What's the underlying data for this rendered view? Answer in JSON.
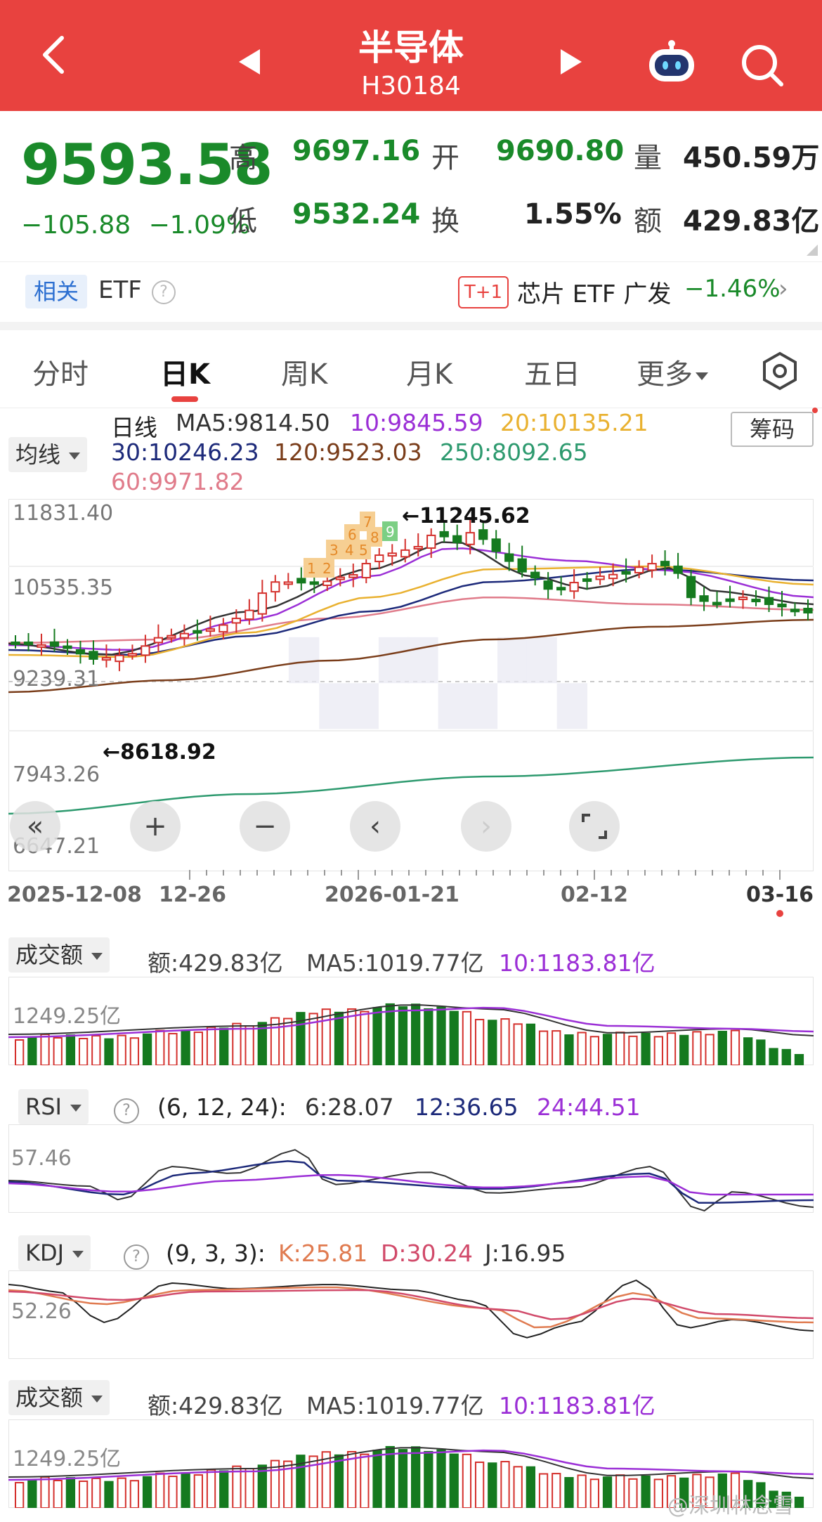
{
  "header": {
    "title": "半导体",
    "code": "H30184"
  },
  "quote": {
    "price": "9593.58",
    "change": "−105.88",
    "change_pct": "−1.09%",
    "high_label": "高",
    "high": "9697.16",
    "open_label": "开",
    "open": "9690.80",
    "volume_label": "量",
    "volume": "450.59万",
    "low_label": "低",
    "low": "9532.24",
    "turnover_label": "换",
    "turnover": "1.55%",
    "amount_label": "额",
    "amount": "429.83亿"
  },
  "etf": {
    "tag": "相关",
    "label": "ETF",
    "help": "?",
    "t1": "T+1",
    "name": "芯片 ETF 广发",
    "change": "−1.46%"
  },
  "tabs": [
    "分时",
    "日K",
    "周K",
    "月K",
    "五日",
    "更多"
  ],
  "active_tab": "日K",
  "ma_legend": {
    "selector": "均线",
    "label": "日线",
    "ma5": "MA5:9814.50",
    "ma10": "10:9845.59",
    "ma20": "20:10135.21",
    "ma30": "30:10246.23",
    "ma120": "120:9523.03",
    "ma250": "250:8092.65",
    "ma60": "60:9971.82",
    "chip_button": "筹码"
  },
  "colors": {
    "up": "#d4302c",
    "down": "#157a1f",
    "ma5": "#333333",
    "ma10": "#9b2fd6",
    "ma20": "#e9b130",
    "ma30": "#1d2a7a",
    "ma60": "#e07b8a",
    "ma120": "#7a3d1a",
    "ma250": "#2e9a6f",
    "header": "#e8423f"
  },
  "kline": {
    "y_labels": [
      "11831.40",
      "10535.35",
      "9239.31",
      "7943.26",
      "6647.21"
    ],
    "high_mark": "←11245.62",
    "low_mark": "←8618.92",
    "x_labels": [
      "2025-12-08",
      "12-26",
      "2026-01-21",
      "02-12",
      "03-16"
    ],
    "sequence_badges": [
      "1",
      "2",
      "3",
      "4",
      "5",
      "6",
      "7",
      "8",
      "9"
    ]
  },
  "nav_buttons": {
    "rewind": "«",
    "zoom_in": "+",
    "zoom_out": "−",
    "left": "‹",
    "right": "›"
  },
  "vol1": {
    "selector": "成交额",
    "amount": "额:429.83亿",
    "ma5": "MA5:1019.77亿",
    "ma10": "10:1183.81亿",
    "y_label": "1249.25亿"
  },
  "rsi": {
    "selector": "RSI",
    "params": "(6, 12, 24):",
    "r6": "6:28.07",
    "r12": "12:36.65",
    "r24": "24:44.51",
    "y_label": "57.46"
  },
  "kdj": {
    "selector": "KDJ",
    "params": "(9, 3, 3):",
    "k": "K:25.81",
    "d": "D:30.24",
    "j": "J:16.95",
    "y_label": "52.26"
  },
  "vol2": {
    "selector": "成交额",
    "amount": "额:429.83亿",
    "ma5": "MA5:1019.77亿",
    "ma10": "10:1183.81亿",
    "y_label": "1249.25亿"
  },
  "watermark": "@深圳林念雪"
}
